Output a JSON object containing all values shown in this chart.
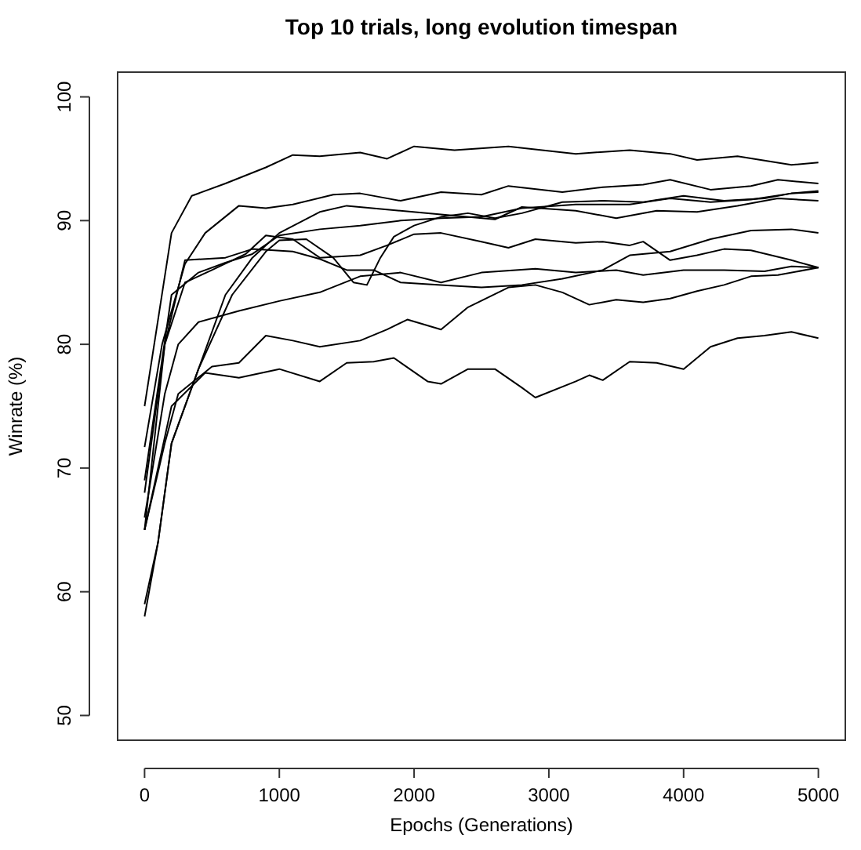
{
  "chart_data": {
    "type": "line",
    "title": "Top 10 trials, long evolution timespan",
    "xlabel": "Epochs (Generations)",
    "ylabel": "Winrate (%)",
    "xlim": [
      -200,
      5200
    ],
    "ylim": [
      48,
      102
    ],
    "xticks": [
      0,
      1000,
      2000,
      3000,
      4000,
      5000
    ],
    "yticks": [
      50,
      60,
      70,
      80,
      90,
      100
    ],
    "grid": false,
    "marker": "none",
    "line_style": "solid",
    "series": [
      {
        "color": "#000000",
        "x": [
          0,
          100,
          200,
          350,
          600,
          900,
          1100,
          1300,
          1600,
          1800,
          2000,
          2300,
          2700,
          3200,
          3600,
          3900,
          4100,
          4400,
          4800,
          5000
        ],
        "values": [
          75,
          82,
          89,
          92,
          93,
          94.3,
          95.3,
          95.2,
          95.5,
          95,
          96,
          95.7,
          96,
          95.4,
          95.7,
          95.4,
          94.9,
          95.2,
          94.5,
          94.7
        ]
      },
      {
        "color": "#000000",
        "x": [
          0,
          130,
          300,
          450,
          700,
          900,
          1100,
          1400,
          1600,
          1900,
          2200,
          2500,
          2700,
          3100,
          3400,
          3700,
          3900,
          4200,
          4500,
          4700,
          5000
        ],
        "values": [
          71.7,
          80,
          86.5,
          89,
          91.2,
          91,
          91.3,
          92.1,
          92.2,
          91.6,
          92.3,
          92.1,
          92.8,
          92.3,
          92.7,
          92.9,
          93.3,
          92.5,
          92.8,
          93.3,
          93
        ]
      },
      {
        "color": "#000000",
        "x": [
          0,
          100,
          200,
          400,
          600,
          800,
          1000,
          1300,
          1500,
          1800,
          2200,
          2600,
          2800,
          3200,
          3500,
          3800,
          4100,
          4400,
          4700,
          5000
        ],
        "values": [
          58,
          64,
          72,
          78,
          84,
          87,
          89,
          90.7,
          91.2,
          90.9,
          90.5,
          90.1,
          91.1,
          90.8,
          90.2,
          90.8,
          90.7,
          91.2,
          91.8,
          91.6
        ]
      },
      {
        "color": "#000000",
        "x": [
          0,
          100,
          200,
          400,
          650,
          900,
          1000,
          1200,
          1400,
          1550,
          1650,
          1750,
          1850,
          2000,
          2200,
          2400,
          2600,
          2800,
          3100,
          3400,
          3700,
          4000,
          4300,
          4600,
          4800,
          5000
        ],
        "values": [
          59,
          64,
          72,
          78,
          84,
          87.5,
          88.4,
          88.5,
          87,
          85,
          84.8,
          87,
          88.7,
          89.6,
          90.3,
          90.6,
          90.2,
          90.6,
          91.5,
          91.6,
          91.5,
          92,
          91.6,
          91.8,
          92.2,
          92.3
        ]
      },
      {
        "color": "#000000",
        "x": [
          0,
          150,
          300,
          500,
          750,
          900,
          1100,
          1300,
          1600,
          1800,
          2000,
          2200,
          2500,
          2700,
          2900,
          3200,
          3400,
          3600,
          3700,
          3900,
          4100,
          4300,
          4500,
          4800,
          5000
        ],
        "values": [
          68,
          80,
          85,
          86,
          87.3,
          88.8,
          88.5,
          87,
          87.2,
          88,
          88.9,
          89,
          88.3,
          87.8,
          88.5,
          88.2,
          88.3,
          88,
          88.3,
          86.8,
          87.2,
          87.7,
          87.6,
          86.8,
          86.2
        ]
      },
      {
        "color": "#000000",
        "x": [
          0,
          150,
          300,
          600,
          800,
          1100,
          1300,
          1500,
          1700,
          1900,
          2200,
          2500,
          2800,
          3100,
          3400,
          3600,
          3900,
          4200,
          4500,
          4800,
          5000
        ],
        "values": [
          65,
          80,
          86.8,
          87,
          87.7,
          87.5,
          86.9,
          86,
          86,
          85,
          84.8,
          84.6,
          84.8,
          85.3,
          86,
          87.2,
          87.5,
          88.5,
          89.2,
          89.3,
          89
        ]
      },
      {
        "color": "#000000",
        "x": [
          0,
          200,
          400,
          600,
          800,
          1000,
          1300,
          1600,
          1900,
          2200,
          2500,
          2800,
          3200,
          3600,
          3900,
          4200,
          4500,
          4800,
          5000
        ],
        "values": [
          69,
          84,
          85.8,
          86.6,
          87.3,
          88.8,
          89.3,
          89.6,
          90,
          90.2,
          90.3,
          91,
          91.3,
          91.3,
          91.8,
          91.5,
          91.7,
          92.2,
          92.4
        ]
      },
      {
        "color": "#000000",
        "x": [
          0,
          150,
          250,
          400,
          700,
          1000,
          1300,
          1600,
          1900,
          2200,
          2500,
          2900,
          3200,
          3500,
          3700,
          4000,
          4300,
          4600,
          4800,
          5000
        ],
        "values": [
          66,
          76,
          80,
          81.8,
          82.7,
          83.5,
          84.2,
          85.5,
          85.8,
          85,
          85.8,
          86.1,
          85.8,
          86,
          85.6,
          86,
          86,
          85.9,
          86.3,
          86.2
        ]
      },
      {
        "color": "#000000",
        "x": [
          0,
          150,
          250,
          500,
          700,
          900,
          1100,
          1300,
          1600,
          1800,
          1950,
          2200,
          2400,
          2700,
          2900,
          3100,
          3300,
          3500,
          3700,
          3900,
          4100,
          4300,
          4500,
          4700,
          5000
        ],
        "values": [
          65,
          72,
          76,
          78.2,
          78.5,
          80.7,
          80.3,
          79.8,
          80.3,
          81.2,
          82,
          81.2,
          83,
          84.6,
          84.8,
          84.2,
          83.2,
          83.6,
          83.4,
          83.7,
          84.3,
          84.8,
          85.5,
          85.6,
          86.2
        ]
      },
      {
        "color": "#000000",
        "x": [
          0,
          200,
          450,
          700,
          1000,
          1300,
          1500,
          1700,
          1850,
          2100,
          2200,
          2400,
          2600,
          2800,
          2900,
          3200,
          3300,
          3400,
          3600,
          3800,
          4000,
          4200,
          4400,
          4600,
          4800,
          5000
        ],
        "values": [
          65,
          75,
          77.7,
          77.3,
          78,
          77,
          78.5,
          78.6,
          78.9,
          77,
          76.8,
          78,
          78,
          76.5,
          75.7,
          77,
          77.5,
          77.1,
          78.6,
          78.5,
          78,
          79.8,
          80.5,
          80.7,
          81,
          80.5
        ]
      }
    ]
  }
}
